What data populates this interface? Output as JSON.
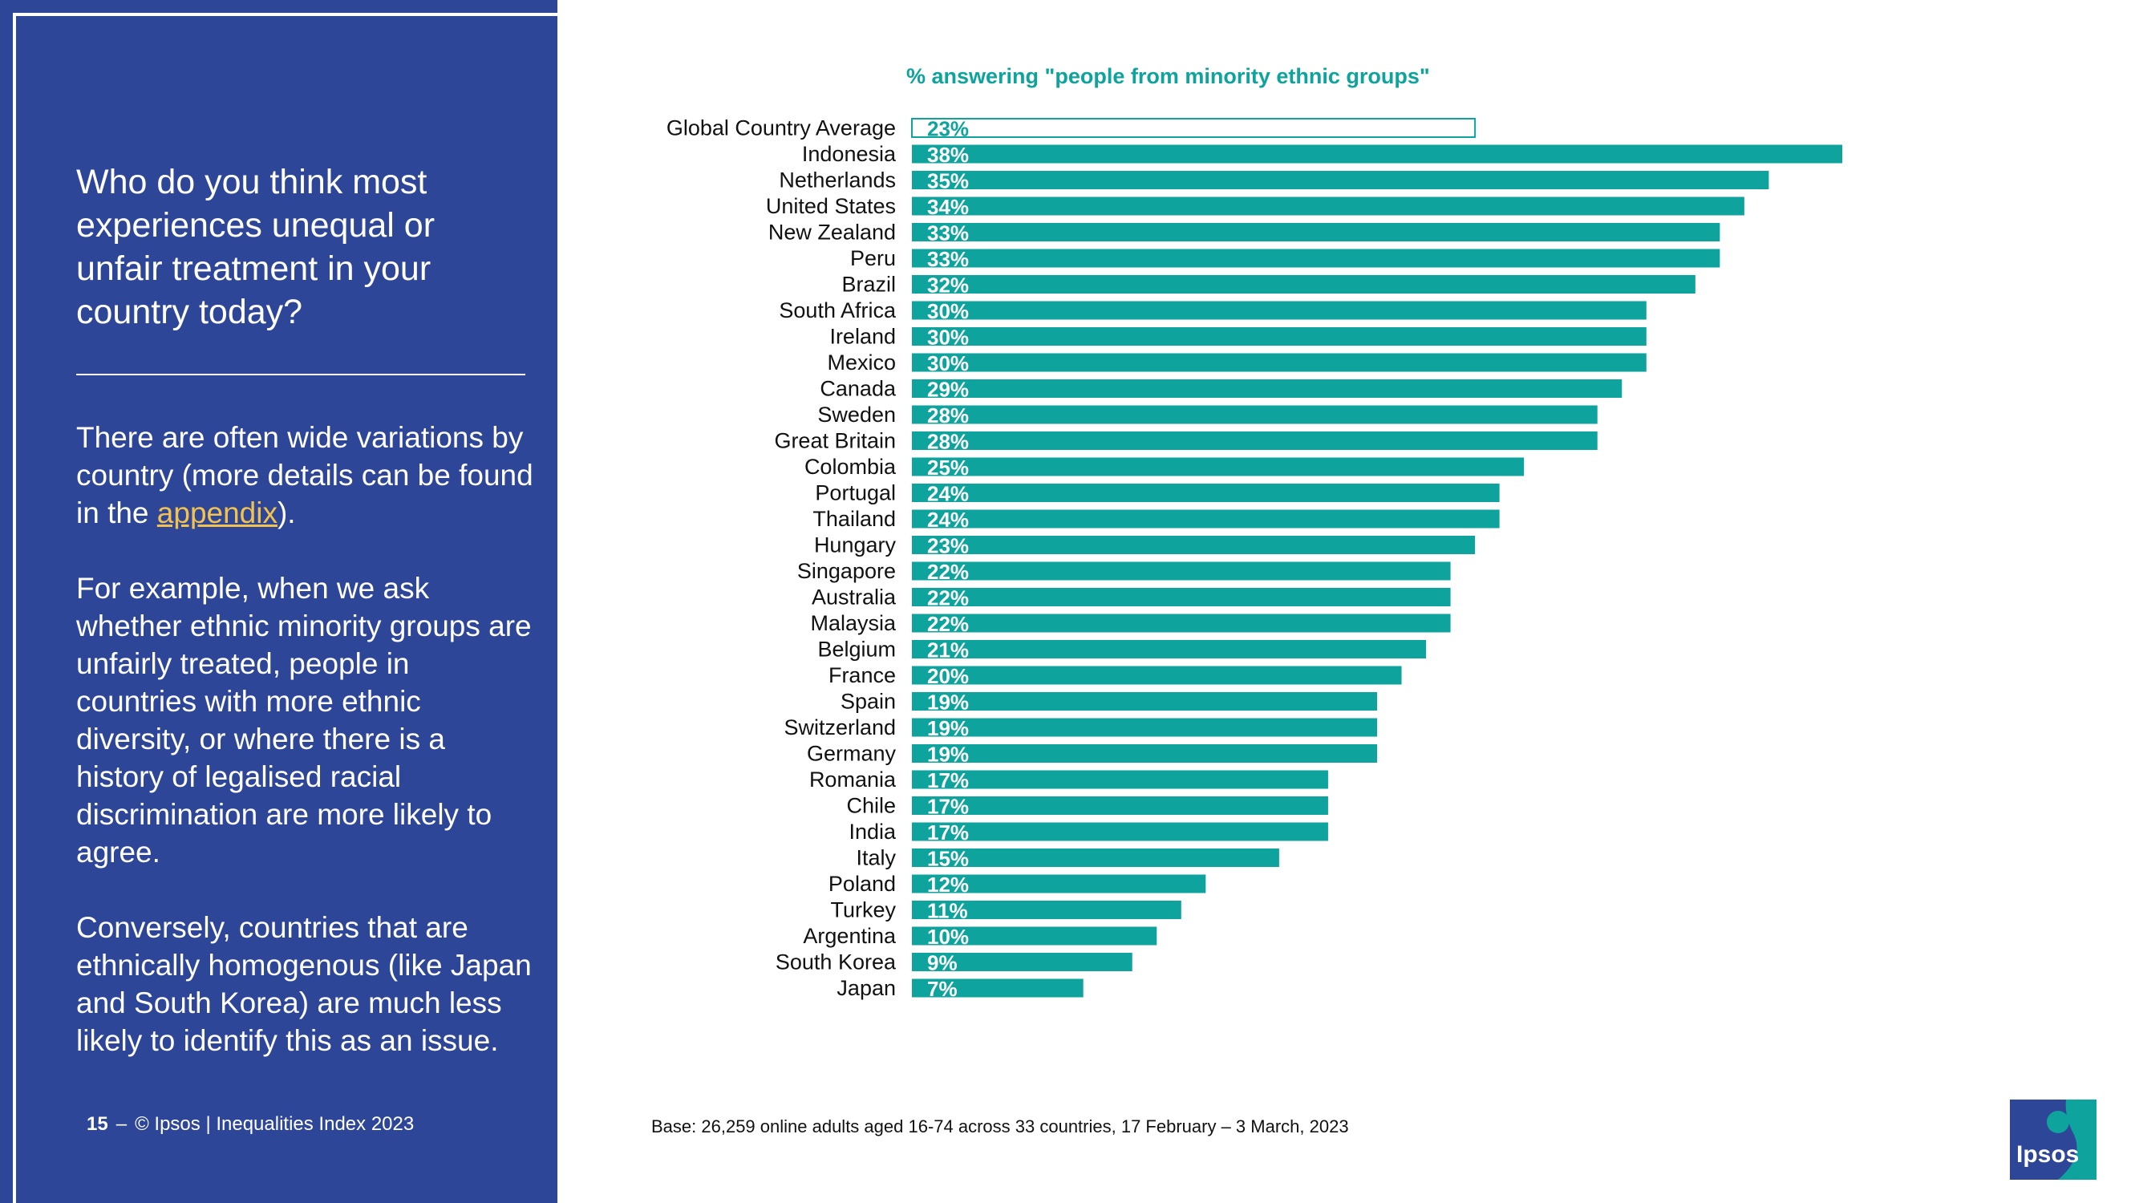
{
  "left": {
    "question": "Who do you think most experiences unequal or unfair treatment in your country today?",
    "para1_before": "There are often wide variations by country (more details can be found in the ",
    "para1_link": "appendix",
    "para1_after": ").",
    "para2": "For example, when we ask whether ethnic minority groups are unfairly treated, people in countries with more ethnic diversity, or where there is a history of legalised racial discrimination are more likely to agree.",
    "para3": "Conversely, countries that are ethnically homogenous (like Japan and South Korea) are much less likely to identify this as an issue."
  },
  "footer": {
    "page_number": "15",
    "dash": "–",
    "copyright": "© Ipsos | Inequalities Index 2023"
  },
  "base_note": "Base: 26,259 online adults aged 16-74 across 33 countries, 17 February – 3 March, 2023",
  "logo": {
    "text": "Ipsos"
  },
  "colors": {
    "panel": "#2e4698",
    "bar": "#0ea39c",
    "link": "#f2c14e"
  },
  "chart_data": {
    "type": "bar",
    "orientation": "horizontal",
    "title": "% answering \"people from minority ethnic groups\"",
    "xlabel": "",
    "ylabel": "",
    "xlim": [
      0,
      38
    ],
    "highlight_first_as_outline": true,
    "categories": [
      "Global Country Average",
      "Indonesia",
      "Netherlands",
      "United States",
      "New Zealand",
      "Peru",
      "Brazil",
      "South Africa",
      "Ireland",
      "Mexico",
      "Canada",
      "Sweden",
      "Great Britain",
      "Colombia",
      "Portugal",
      "Thailand",
      "Hungary",
      "Singapore",
      "Australia",
      "Malaysia",
      "Belgium",
      "France",
      "Spain",
      "Switzerland",
      "Germany",
      "Romania",
      "Chile",
      "India",
      "Italy",
      "Poland",
      "Turkey",
      "Argentina",
      "South Korea",
      "Japan"
    ],
    "values": [
      23,
      38,
      35,
      34,
      33,
      33,
      32,
      30,
      30,
      30,
      29,
      28,
      28,
      25,
      24,
      24,
      23,
      22,
      22,
      22,
      21,
      20,
      19,
      19,
      19,
      17,
      17,
      17,
      15,
      12,
      11,
      10,
      9,
      7
    ],
    "labels": [
      "23%",
      "38%",
      "35%",
      "34%",
      "33%",
      "33%",
      "32%",
      "30%",
      "30%",
      "30%",
      "29%",
      "28%",
      "28%",
      "25%",
      "24%",
      "24%",
      "23%",
      "22%",
      "22%",
      "22%",
      "21%",
      "20%",
      "19%",
      "19%",
      "19%",
      "17%",
      "17%",
      "17%",
      "15%",
      "12%",
      "11%",
      "10%",
      "9%",
      "7%"
    ]
  }
}
